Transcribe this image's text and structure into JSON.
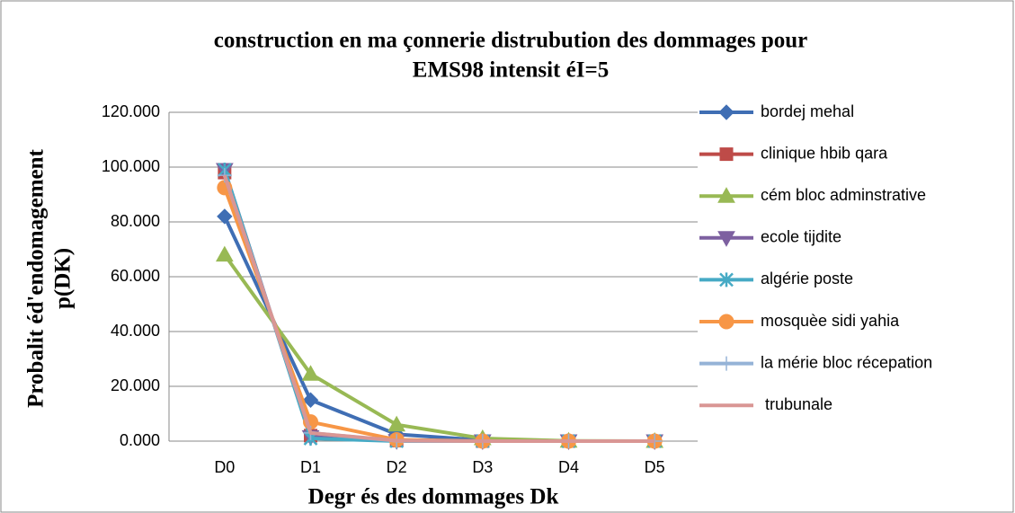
{
  "chart_data": {
    "type": "line",
    "title": [
      "construction en  ma çonnerie distrubution des dommages pour",
      "EMS98 intensit éI=5"
    ],
    "x_label": "Degr és des dommages Dk",
    "y_label": [
      "Probalit éd'endomagement",
      "p(DK)"
    ],
    "categories": [
      "D0",
      "D1",
      "D2",
      "D3",
      "D4",
      "D5"
    ],
    "ylim": [
      0,
      120
    ],
    "yticks": [
      {
        "value": 0,
        "label": "0.000"
      },
      {
        "value": 20,
        "label": "20.000"
      },
      {
        "value": 40,
        "label": "40.000"
      },
      {
        "value": 60,
        "label": "60.000"
      },
      {
        "value": 80,
        "label": "80.000"
      },
      {
        "value": 100,
        "label": "100.000"
      },
      {
        "value": 120,
        "label": "120.000"
      }
    ],
    "grid": true,
    "legend": "right",
    "series": [
      {
        "name": "bordej mehal",
        "color": "#3f6eb4",
        "marker": "diamond",
        "values": [
          82,
          15,
          2.5,
          0.3,
          0,
          0
        ]
      },
      {
        "name": "clinique hbib qara",
        "color": "#be4b48",
        "marker": "square",
        "values": [
          98,
          2,
          0.2,
          0,
          0,
          0
        ]
      },
      {
        "name": "cém bloc adminstrative",
        "color": "#98b954",
        "marker": "triangle",
        "values": [
          68,
          24.5,
          6,
          1,
          0.1,
          0
        ]
      },
      {
        "name": "ecole tijdite",
        "color": "#7d60a0",
        "marker": "triangle-down",
        "values": [
          99,
          1.5,
          0.1,
          0,
          0,
          0
        ]
      },
      {
        "name": "algérie poste",
        "color": "#46aac5",
        "marker": "star",
        "values": [
          99,
          1,
          0,
          0,
          0,
          0
        ]
      },
      {
        "name": "mosquèe sidi yahia",
        "color": "#f79646",
        "marker": "circle",
        "values": [
          92.5,
          7,
          0.5,
          0,
          0,
          0
        ]
      },
      {
        "name": "la mérie bloc récepation",
        "color": "#95b3d7",
        "marker": "plus",
        "values": [
          97,
          3,
          0.1,
          0,
          0,
          0
        ]
      },
      {
        "name": " trubunale",
        "color": "#d99694",
        "marker": "none",
        "values": [
          97,
          3,
          0.2,
          0,
          0,
          0
        ]
      }
    ]
  }
}
